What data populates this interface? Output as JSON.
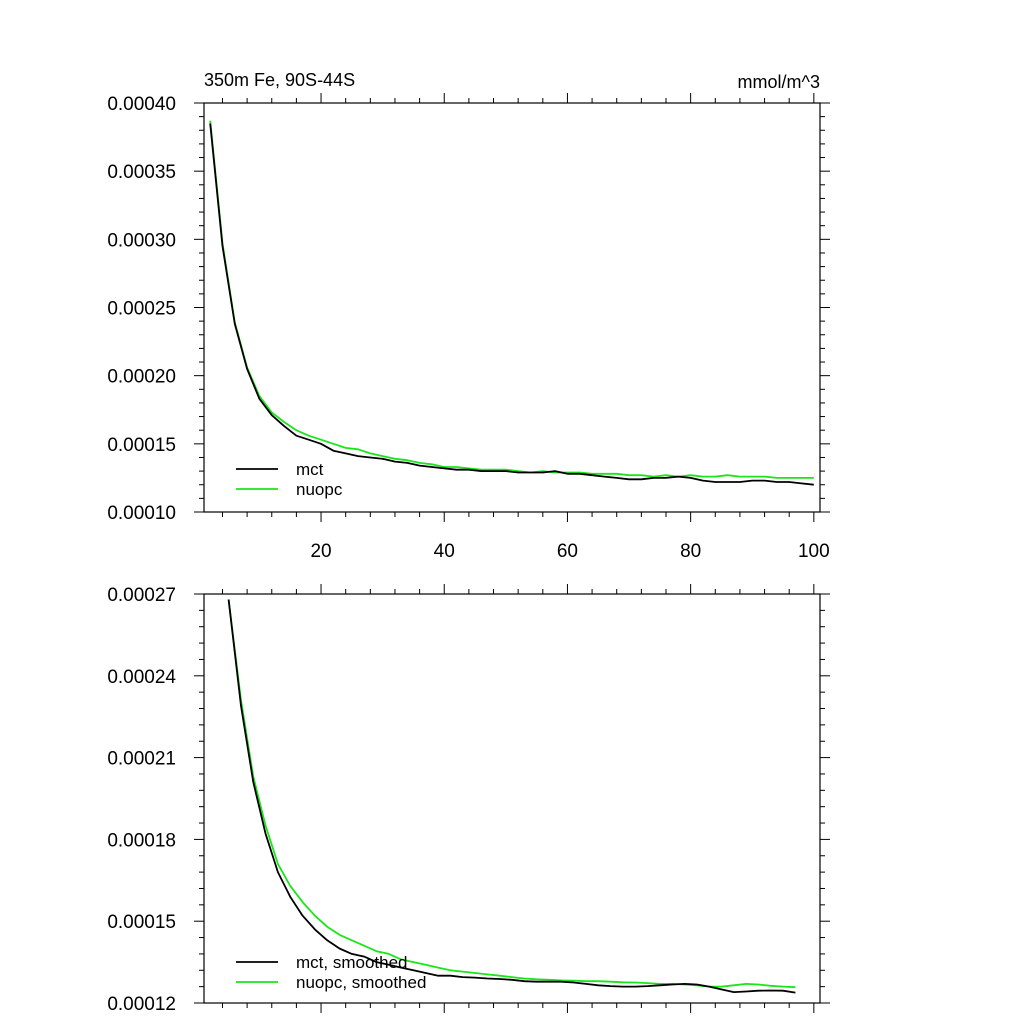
{
  "chart_data": [
    {
      "type": "line",
      "title": "350m Fe, 90S-44S",
      "units": "mmol/m^3",
      "xlabel": "",
      "ylabel": "",
      "xlim": [
        1,
        101
      ],
      "ylim": [
        0.0001,
        0.0004
      ],
      "x_ticks": [
        20,
        40,
        60,
        80,
        100
      ],
      "y_ticks": [
        "0.00010",
        "0.00015",
        "0.00020",
        "0.00025",
        "0.00030",
        "0.00035",
        "0.00040"
      ],
      "legend_position": "bottom-left",
      "series": [
        {
          "name": "mct",
          "color": "#000000",
          "x": [
            2,
            4,
            6,
            8,
            10,
            12,
            14,
            16,
            18,
            20,
            22,
            24,
            26,
            28,
            30,
            32,
            34,
            36,
            38,
            40,
            42,
            44,
            46,
            48,
            50,
            52,
            54,
            56,
            58,
            60,
            62,
            64,
            66,
            68,
            70,
            72,
            74,
            76,
            78,
            80,
            82,
            84,
            86,
            88,
            90,
            92,
            94,
            96,
            98,
            100
          ],
          "values": [
            0.000385,
            0.000295,
            0.000238,
            0.000205,
            0.000183,
            0.000171,
            0.000163,
            0.000156,
            0.000153,
            0.00015,
            0.000145,
            0.000143,
            0.000141,
            0.00014,
            0.000139,
            0.000137,
            0.000136,
            0.000134,
            0.000133,
            0.000132,
            0.000131,
            0.000131,
            0.00013,
            0.00013,
            0.00013,
            0.000129,
            0.000129,
            0.000129,
            0.00013,
            0.000128,
            0.000128,
            0.000127,
            0.000126,
            0.000125,
            0.000124,
            0.000124,
            0.000125,
            0.000125,
            0.000126,
            0.000125,
            0.000123,
            0.000122,
            0.000122,
            0.000122,
            0.000123,
            0.000123,
            0.000122,
            0.000122,
            0.000121,
            0.00012
          ]
        },
        {
          "name": "nuopc",
          "color": "#19e619",
          "x": [
            2,
            4,
            6,
            8,
            10,
            12,
            14,
            16,
            18,
            20,
            22,
            24,
            26,
            28,
            30,
            32,
            34,
            36,
            38,
            40,
            42,
            44,
            46,
            48,
            50,
            52,
            54,
            56,
            58,
            60,
            62,
            64,
            66,
            68,
            70,
            72,
            74,
            76,
            78,
            80,
            82,
            84,
            86,
            88,
            90,
            92,
            94,
            96,
            98,
            100
          ],
          "values": [
            0.000387,
            0.000297,
            0.000239,
            0.000206,
            0.000185,
            0.000173,
            0.000166,
            0.00016,
            0.000156,
            0.000153,
            0.00015,
            0.000147,
            0.000146,
            0.000143,
            0.000141,
            0.000139,
            0.000138,
            0.000136,
            0.000135,
            0.000133,
            0.000133,
            0.000132,
            0.000131,
            0.000131,
            0.000131,
            0.00013,
            0.000129,
            0.00013,
            0.000129,
            0.000129,
            0.000129,
            0.000128,
            0.000128,
            0.000128,
            0.000127,
            0.000127,
            0.000126,
            0.000127,
            0.000126,
            0.000127,
            0.000126,
            0.000126,
            0.000127,
            0.000126,
            0.000126,
            0.000126,
            0.000125,
            0.000125,
            0.000125,
            0.000125
          ]
        }
      ]
    },
    {
      "type": "line",
      "title": "",
      "xlabel": "",
      "ylabel": "",
      "xlim": [
        1,
        101
      ],
      "ylim": [
        0.00012,
        0.00027
      ],
      "x_ticks": [
        20,
        40,
        60,
        80,
        100
      ],
      "y_ticks": [
        "0.00012",
        "0.00015",
        "0.00018",
        "0.00021",
        "0.00024",
        "0.00027"
      ],
      "legend_position": "bottom-left",
      "series": [
        {
          "name": "mct, smoothed",
          "color": "#000000",
          "x": [
            5,
            7,
            9,
            11,
            13,
            15,
            17,
            19,
            21,
            23,
            25,
            27,
            29,
            31,
            33,
            35,
            37,
            39,
            41,
            43,
            45,
            47,
            49,
            51,
            53,
            55,
            57,
            59,
            61,
            63,
            65,
            67,
            69,
            71,
            73,
            75,
            77,
            79,
            81,
            83,
            85,
            87,
            89,
            91,
            93,
            95,
            97
          ],
          "values": [
            0.000268,
            0.000229,
            0.000201,
            0.000182,
            0.000168,
            0.000159,
            0.000152,
            0.000147,
            0.000143,
            0.00014,
            0.000138,
            0.000137,
            0.000135,
            0.000134,
            0.000133,
            0.000132,
            0.000131,
            0.00013,
            0.00013,
            0.0001295,
            0.0001293,
            0.000129,
            0.0001288,
            0.0001285,
            0.000128,
            0.0001278,
            0.0001278,
            0.0001278,
            0.0001275,
            0.000127,
            0.0001265,
            0.0001262,
            0.000126,
            0.000126,
            0.0001262,
            0.0001265,
            0.0001268,
            0.000127,
            0.0001268,
            0.000126,
            0.000125,
            0.000124,
            0.0001242,
            0.0001245,
            0.0001246,
            0.0001245,
            0.0001238
          ]
        },
        {
          "name": "nuopc, smoothed",
          "color": "#19e619",
          "x": [
            5,
            7,
            9,
            11,
            13,
            15,
            17,
            19,
            21,
            23,
            25,
            27,
            29,
            31,
            33,
            35,
            37,
            39,
            41,
            43,
            45,
            47,
            49,
            51,
            53,
            55,
            57,
            59,
            61,
            63,
            65,
            67,
            69,
            71,
            73,
            75,
            77,
            79,
            81,
            83,
            85,
            87,
            89,
            91,
            93,
            95,
            97
          ],
          "values": [
            0.000268,
            0.000231,
            0.000203,
            0.000185,
            0.000171,
            0.000163,
            0.000157,
            0.000152,
            0.000148,
            0.000145,
            0.000143,
            0.000141,
            0.000139,
            0.000138,
            0.000136,
            0.000135,
            0.000134,
            0.000133,
            0.000132,
            0.0001315,
            0.000131,
            0.0001305,
            0.00013,
            0.0001295,
            0.000129,
            0.0001287,
            0.0001285,
            0.0001283,
            0.0001282,
            0.000128,
            0.000128,
            0.0001278,
            0.0001276,
            0.0001275,
            0.0001273,
            0.000127,
            0.000127,
            0.0001268,
            0.0001265,
            0.000126,
            0.000126,
            0.0001265,
            0.000127,
            0.0001268,
            0.0001263,
            0.000126,
            0.0001258
          ]
        }
      ]
    }
  ]
}
